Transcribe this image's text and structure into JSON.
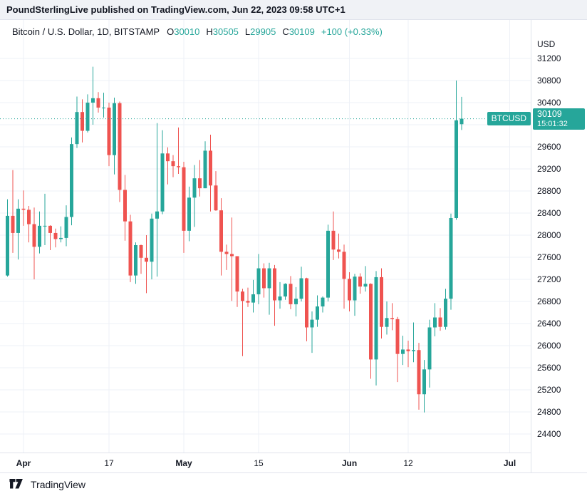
{
  "banner": {
    "text": "PoundSterlingLive published on TradingView.com, Jun 22, 2023 09:58 UTC+1"
  },
  "legend": {
    "symbol": "Bitcoin / U.S. Dollar, 1D, BITSTAMP",
    "ohlc": [
      {
        "label": "O",
        "value": "30010"
      },
      {
        "label": "H",
        "value": "30505"
      },
      {
        "label": "L",
        "value": "29905"
      },
      {
        "label": "C",
        "value": "30109"
      }
    ],
    "change": "+100 (+0.33%)"
  },
  "price_axis": {
    "currency": "USD",
    "ticks": [
      31200,
      30800,
      30400,
      29600,
      29200,
      28800,
      28400,
      28000,
      27600,
      27200,
      26800,
      26400,
      26000,
      25600,
      25200,
      24800,
      24400
    ],
    "grid_step": 400,
    "grid_min": 24400,
    "grid_max": 31200
  },
  "last_price_badge": {
    "symbol_label": "BTCUSD",
    "price": "30109",
    "countdown": "15:01:32"
  },
  "time_axis": {
    "labels": [
      {
        "text": "Apr",
        "index": 3,
        "major": true
      },
      {
        "text": "17",
        "index": 19,
        "major": false
      },
      {
        "text": "May",
        "index": 33,
        "major": true
      },
      {
        "text": "15",
        "index": 47,
        "major": false
      },
      {
        "text": "Jun",
        "index": 64,
        "major": true
      },
      {
        "text": "12",
        "index": 75,
        "major": false
      },
      {
        "text": "Jul",
        "index": 94,
        "major": true
      }
    ]
  },
  "footer": {
    "brand": "TradingView"
  },
  "colors": {
    "up": "#26a69a",
    "down": "#ef5350",
    "accent": "#26a69a",
    "grid": "#eef1f7",
    "text": "#131722",
    "border": "#e0e3eb"
  },
  "chart_data": {
    "type": "candlestick",
    "title": "Bitcoin / U.S. Dollar",
    "timeframe": "1D",
    "exchange": "BITSTAMP",
    "last_price": 30109,
    "ylim": [
      24065,
      31897
    ],
    "ylabel": "USD",
    "grid": true,
    "candles": [
      [
        "Mar 29",
        27270,
        28650,
        27250,
        28350
      ],
      [
        "Mar 30",
        28350,
        29180,
        27680,
        28040
      ],
      [
        "Mar 31",
        28040,
        28650,
        27560,
        28480
      ],
      [
        "Apr 1",
        28480,
        28810,
        28170,
        28460
      ],
      [
        "Apr 2",
        28460,
        28530,
        27870,
        28200
      ],
      [
        "Apr 3",
        28200,
        28500,
        27200,
        27790
      ],
      [
        "Apr 4",
        27790,
        28430,
        27670,
        28170
      ],
      [
        "Apr 5",
        28170,
        28750,
        27820,
        28170
      ],
      [
        "Apr 6",
        28170,
        28180,
        27730,
        28040
      ],
      [
        "Apr 7",
        28040,
        28120,
        27780,
        27930
      ],
      [
        "Apr 8",
        27930,
        28160,
        27870,
        27950
      ],
      [
        "Apr 9",
        27950,
        28540,
        27800,
        28330
      ],
      [
        "Apr 10",
        28330,
        29770,
        28180,
        29650
      ],
      [
        "Apr 11",
        29650,
        30510,
        29580,
        30230
      ],
      [
        "Apr 12",
        30230,
        30460,
        29680,
        29890
      ],
      [
        "Apr 13",
        29890,
        30550,
        29860,
        30400
      ],
      [
        "Apr 14",
        30400,
        31050,
        30000,
        30480
      ],
      [
        "Apr 15",
        30480,
        30590,
        30220,
        30310
      ],
      [
        "Apr 16",
        30310,
        30580,
        30130,
        30310
      ],
      [
        "Apr 17",
        30310,
        30400,
        29250,
        29450
      ],
      [
        "Apr 18",
        29450,
        30490,
        29100,
        30390
      ],
      [
        "Apr 19",
        30390,
        30420,
        28600,
        28820
      ],
      [
        "Apr 20",
        28820,
        29090,
        27900,
        28250
      ],
      [
        "Apr 21",
        28250,
        28370,
        27150,
        27270
      ],
      [
        "Apr 22",
        27270,
        27870,
        27120,
        27820
      ],
      [
        "Apr 23",
        27820,
        27830,
        27300,
        27590
      ],
      [
        "Apr 24",
        27590,
        28000,
        26950,
        27520
      ],
      [
        "Apr 25",
        27520,
        28390,
        27200,
        28300
      ],
      [
        "Apr 26",
        28300,
        30030,
        27250,
        28430
      ],
      [
        "Apr 27",
        28430,
        29900,
        28380,
        29480
      ],
      [
        "Apr 28",
        29480,
        29590,
        28920,
        29340
      ],
      [
        "Apr 29",
        29340,
        29450,
        29050,
        29250
      ],
      [
        "Apr 30",
        29250,
        29950,
        29110,
        29230
      ],
      [
        "May 1",
        29230,
        29330,
        27680,
        28080
      ],
      [
        "May 2",
        28080,
        28880,
        27890,
        28680
      ],
      [
        "May 3",
        28680,
        29270,
        28150,
        29030
      ],
      [
        "May 4",
        29030,
        29360,
        28700,
        28850
      ],
      [
        "May 5",
        28850,
        29700,
        28850,
        29530
      ],
      [
        "May 6",
        29530,
        29820,
        28430,
        28900
      ],
      [
        "May 7",
        28900,
        29160,
        28440,
        28450
      ],
      [
        "May 8",
        28450,
        28670,
        27270,
        27700
      ],
      [
        "May 9",
        27700,
        27830,
        27370,
        27660
      ],
      [
        "May 10",
        27660,
        28320,
        26810,
        27620
      ],
      [
        "May 11",
        27620,
        27620,
        26700,
        26980
      ],
      [
        "May 12",
        26980,
        27030,
        25810,
        26810
      ],
      [
        "May 13",
        26810,
        27050,
        26700,
        26780
      ],
      [
        "May 14",
        26780,
        27190,
        26600,
        26930
      ],
      [
        "May 15",
        26930,
        27660,
        26750,
        27400
      ],
      [
        "May 16",
        27400,
        27490,
        26870,
        27040
      ],
      [
        "May 17",
        27040,
        27500,
        26560,
        27400
      ],
      [
        "May 18",
        27400,
        27460,
        26360,
        26820
      ],
      [
        "May 19",
        26820,
        27150,
        26670,
        26890
      ],
      [
        "May 20",
        26890,
        27130,
        26830,
        27120
      ],
      [
        "May 21",
        27120,
        27260,
        26660,
        26750
      ],
      [
        "May 22",
        26750,
        27060,
        26530,
        26850
      ],
      [
        "May 23",
        26850,
        27430,
        26800,
        27220
      ],
      [
        "May 24",
        27220,
        27230,
        26080,
        26330
      ],
      [
        "May 25",
        26330,
        26620,
        25870,
        26470
      ],
      [
        "May 26",
        26470,
        26910,
        26340,
        26710
      ],
      [
        "May 27",
        26710,
        26890,
        26600,
        26870
      ],
      [
        "May 28",
        26870,
        28190,
        26800,
        28080
      ],
      [
        "May 29",
        28080,
        28430,
        27550,
        27740
      ],
      [
        "May 30",
        27740,
        28030,
        27580,
        27700
      ],
      [
        "May 31",
        27700,
        27830,
        26670,
        27210
      ],
      [
        "Jun 1",
        27210,
        27330,
        26620,
        26820
      ],
      [
        "Jun 2",
        26820,
        27300,
        26540,
        27250
      ],
      [
        "Jun 3",
        27250,
        27310,
        26940,
        27070
      ],
      [
        "Jun 4",
        27070,
        27440,
        26980,
        27120
      ],
      [
        "Jun 5",
        27120,
        27130,
        25400,
        25750
      ],
      [
        "Jun 6",
        25750,
        27350,
        25280,
        27240
      ],
      [
        "Jun 7",
        27240,
        27400,
        26130,
        26340
      ],
      [
        "Jun 8",
        26340,
        26800,
        26200,
        26500
      ],
      [
        "Jun 9",
        26500,
        26770,
        26280,
        26480
      ],
      [
        "Jun 10",
        26480,
        26520,
        25340,
        25850
      ],
      [
        "Jun 11",
        25850,
        26180,
        25650,
        25930
      ],
      [
        "Jun 12",
        25930,
        26090,
        25610,
        25900
      ],
      [
        "Jun 13",
        25900,
        26420,
        25700,
        25920
      ],
      [
        "Jun 14",
        25920,
        26050,
        24840,
        25120
      ],
      [
        "Jun 15",
        25120,
        25740,
        24790,
        25570
      ],
      [
        "Jun 16",
        25570,
        26470,
        25240,
        26330
      ],
      [
        "Jun 17",
        26330,
        26770,
        26170,
        26510
      ],
      [
        "Jun 18",
        26510,
        26680,
        26270,
        26340
      ],
      [
        "Jun 19",
        26340,
        27030,
        26290,
        26850
      ],
      [
        "Jun 20",
        26850,
        28390,
        26650,
        28310
      ],
      [
        "Jun 21",
        28310,
        30800,
        28280,
        30080
      ],
      [
        "Jun 22",
        30010,
        30505,
        29905,
        30109
      ]
    ]
  }
}
